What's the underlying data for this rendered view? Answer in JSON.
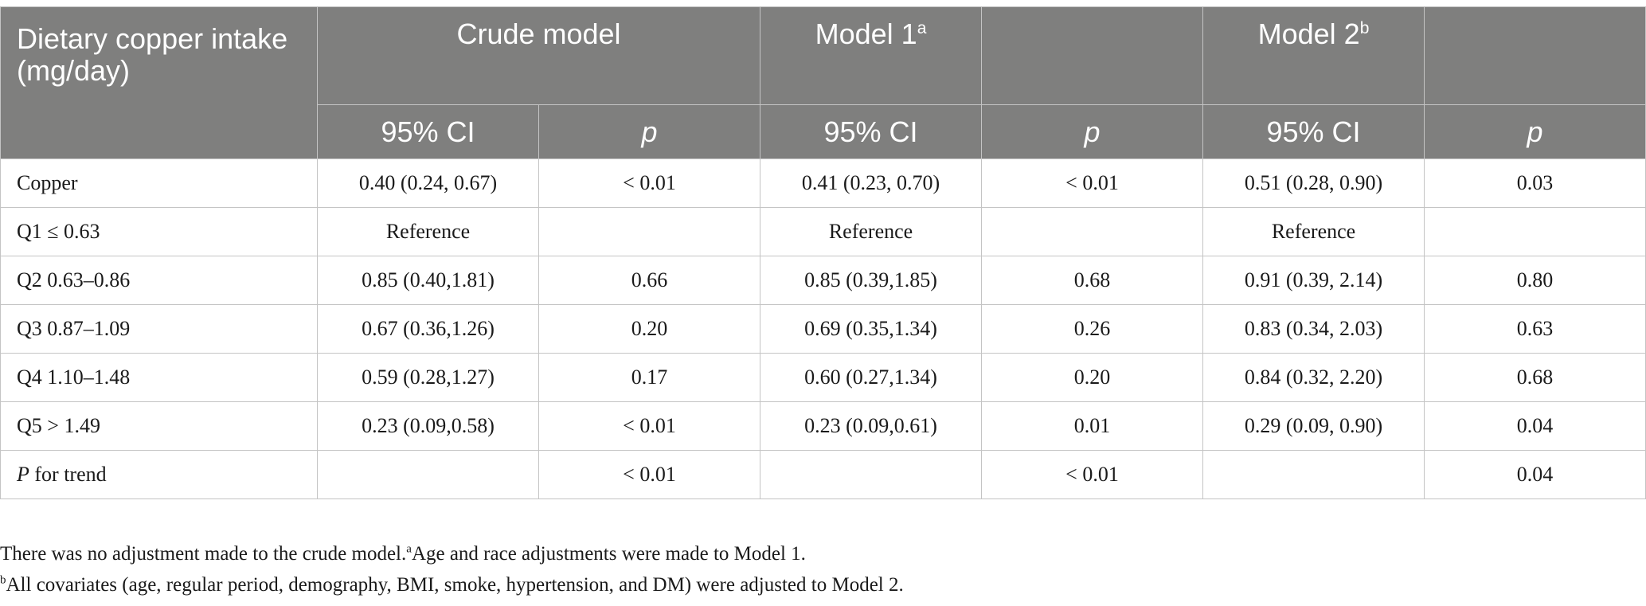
{
  "table": {
    "header": {
      "first_col": "Dietary copper intake (mg/day)",
      "crude_model": "Crude model",
      "model1": "Model 1",
      "model1_sup": "a",
      "model2": "Model 2",
      "model2_sup": "b",
      "ci_label": "95% CI",
      "p_label": "p"
    },
    "rows": [
      {
        "label": "Copper",
        "crude_ci": "0.40 (0.24, 0.67)",
        "crude_p": "< 0.01",
        "m1_ci": "0.41 (0.23, 0.70)",
        "m1_p": "< 0.01",
        "m2_ci": "0.51 (0.28, 0.90)",
        "m2_p": "0.03"
      },
      {
        "label": "Q1 ≤ 0.63",
        "crude_ci": "Reference",
        "crude_p": "",
        "m1_ci": "Reference",
        "m1_p": "",
        "m2_ci": "Reference",
        "m2_p": ""
      },
      {
        "label": "Q2 0.63–0.86",
        "crude_ci": "0.85 (0.40,1.81)",
        "crude_p": "0.66",
        "m1_ci": "0.85 (0.39,1.85)",
        "m1_p": "0.68",
        "m2_ci": "0.91 (0.39, 2.14)",
        "m2_p": "0.80"
      },
      {
        "label": "Q3 0.87–1.09",
        "crude_ci": "0.67 (0.36,1.26)",
        "crude_p": "0.20",
        "m1_ci": "0.69 (0.35,1.34)",
        "m1_p": "0.26",
        "m2_ci": "0.83 (0.34, 2.03)",
        "m2_p": "0.63"
      },
      {
        "label": "Q4 1.10–1.48",
        "crude_ci": "0.59 (0.28,1.27)",
        "crude_p": "0.17",
        "m1_ci": "0.60 (0.27,1.34)",
        "m1_p": "0.20",
        "m2_ci": "0.84 (0.32, 2.20)",
        "m2_p": "0.68"
      },
      {
        "label": "Q5 > 1.49",
        "crude_ci": "0.23 (0.09,0.58)",
        "crude_p": "< 0.01",
        "m1_ci": "0.23 (0.09,0.61)",
        "m1_p": "0.01",
        "m2_ci": "0.29 (0.09, 0.90)",
        "m2_p": "0.04"
      }
    ],
    "trend_row": {
      "label_italic": "P",
      "label_rest": " for trend",
      "crude_ci": "",
      "crude_p": "< 0.01",
      "m1_ci": "",
      "m1_p": "< 0.01",
      "m2_ci": "",
      "m2_p": "0.04"
    }
  },
  "footnotes": {
    "line1_text": "There was no adjustment made to the crude model.",
    "line1_sup": "a",
    "line1_rest": "Age and race adjustments were made to Model 1.",
    "line2_sup": "b",
    "line2_text": "All covariates (age, regular period, demography, BMI, smoke, hypertension, and DM) were adjusted to Model 2."
  }
}
